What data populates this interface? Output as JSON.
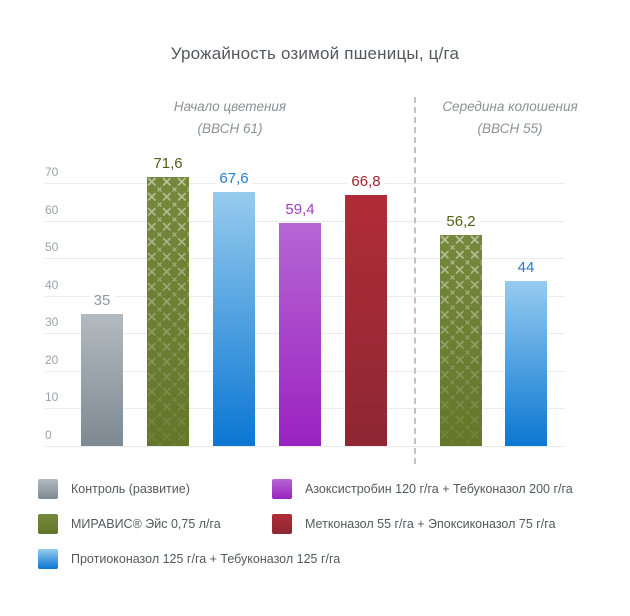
{
  "page": {
    "background": "#ffffff"
  },
  "chart_data": {
    "type": "bar",
    "title": "Урожайность озимой пшеницы, ц/га",
    "xlabel": "",
    "ylabel": "",
    "ylim": [
      0,
      70
    ],
    "yticks": [
      0,
      10,
      20,
      30,
      40,
      50,
      60,
      70
    ],
    "grid": true,
    "legend_position": "bottom",
    "groups": [
      {
        "line1": "Начало цветения",
        "line2": "(ВВСН 61)"
      },
      {
        "line1": "Середина колошения",
        "line2": "(ВВСН 55)"
      }
    ],
    "bars": [
      {
        "group": 0,
        "treatment": "Контроль (развитие)",
        "value": 35,
        "display": "35",
        "color": "gray"
      },
      {
        "group": 0,
        "treatment": "МИРАВИС® Эйс 0,75 л/га",
        "value": 71.6,
        "display": "71,6",
        "color": "green"
      },
      {
        "group": 0,
        "treatment": "Протиоконазол 125 г/га + Тебуконазол 125 г/га",
        "value": 67.6,
        "display": "67,6",
        "color": "blue"
      },
      {
        "group": 0,
        "treatment": "Азоксистробин 120 г/га + Тебуконазол 200 г/га",
        "value": 59.4,
        "display": "59,4",
        "color": "purple"
      },
      {
        "group": 0,
        "treatment": "Метконазол 55 г/га + Эпоксиконазол 75 г/га",
        "value": 66.8,
        "display": "66,8",
        "color": "red"
      },
      {
        "group": 1,
        "treatment": "МИРАВИС® Эйс 0,75 л/га",
        "value": 56.2,
        "display": "56,2",
        "color": "green"
      },
      {
        "group": 1,
        "treatment": "Протиоконазол 125 г/га + Тебуконазол 125 г/га",
        "value": 44,
        "display": "44",
        "color": "blue"
      }
    ],
    "legend": [
      {
        "label": "Контроль (развитие)",
        "color": "gray"
      },
      {
        "label": "МИРАВИС® Эйс 0,75 л/га",
        "color": "green"
      },
      {
        "label": "Протиоконазол 125 г/га + Тебуконазол 125 г/га",
        "color": "blue"
      },
      {
        "label": "Азоксистробин 120 г/га + Тебуконазол 200 г/га",
        "color": "purple"
      },
      {
        "label": "Метконазол 55 г/га + Эпоксиконазол 75 г/га",
        "color": "red"
      }
    ],
    "palette": {
      "gray": {
        "top": "#b3bac0",
        "bottom": "#7e8992",
        "label": "#8e979e",
        "pattern": false
      },
      "green": {
        "top": "#75883c",
        "bottom": "#637629",
        "label": "#4e5f17",
        "pattern": true
      },
      "blue": {
        "top": "#96cbee",
        "bottom": "#0b77d3",
        "label": "#1f7cd4",
        "pattern": false
      },
      "purple": {
        "top": "#b666d4",
        "bottom": "#9a22c0",
        "label": "#a43bc9",
        "pattern": false
      },
      "red": {
        "top": "#b12c37",
        "bottom": "#8d2733",
        "label": "#a3242f",
        "pattern": false
      }
    },
    "colors": {
      "gridline": "#e9ebee",
      "tick_text": "#9ba2a9",
      "divider": "#bdc3c9",
      "title_text": "#53585e",
      "group_header_text": "#8c9196",
      "legend_text": "#55595e"
    }
  }
}
